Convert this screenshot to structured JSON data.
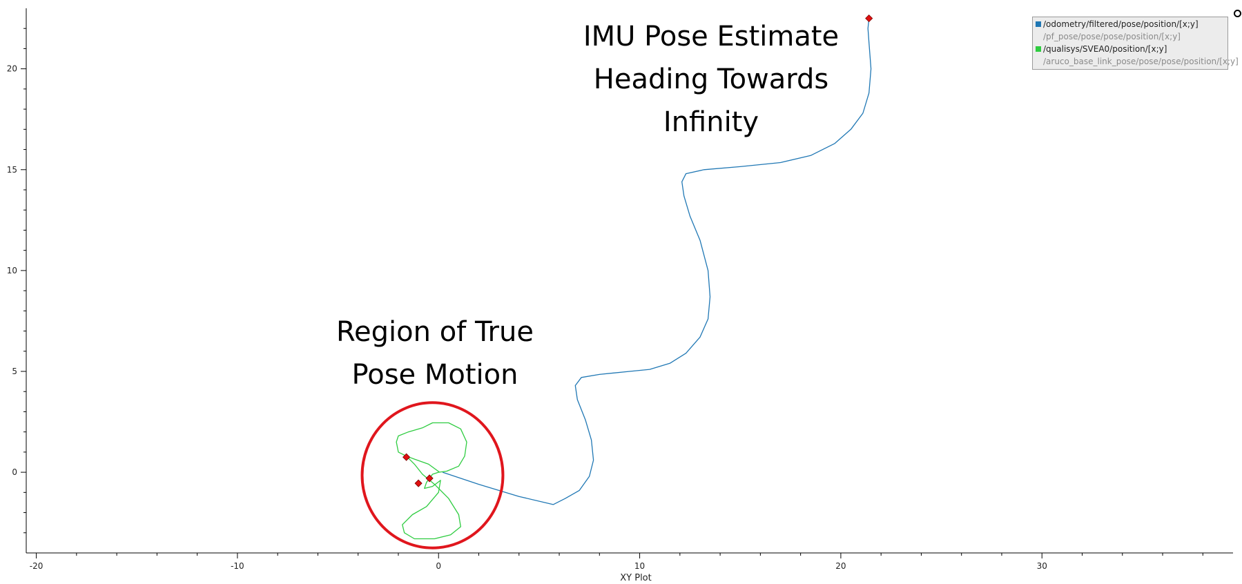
{
  "chart_data": {
    "type": "scatter",
    "title": "",
    "xlabel": "XY Plot",
    "ylabel": "",
    "xlim": [
      -20.5,
      39.5
    ],
    "ylim": [
      -4,
      23
    ],
    "x_ticks": [
      -20,
      -10,
      0,
      10,
      20,
      30
    ],
    "x_tick_labels": [
      "-20",
      "-10",
      "0",
      "10",
      "20",
      "30"
    ],
    "y_ticks": [
      0,
      5,
      10,
      15,
      20
    ],
    "y_tick_labels": [
      "0",
      "5",
      "10",
      "15",
      "20"
    ],
    "grid": false,
    "legend_position": "top-right",
    "series": [
      {
        "name": "/odometry/filtered/pose/position/[x;y]",
        "color": "#1f77b4",
        "visible": true,
        "points": [
          [
            0.2,
            0.0
          ],
          [
            2.0,
            -0.6
          ],
          [
            4.0,
            -1.2
          ],
          [
            5.7,
            -1.6
          ],
          [
            6.3,
            -1.3
          ],
          [
            7.0,
            -0.9
          ],
          [
            7.5,
            -0.2
          ],
          [
            7.7,
            0.6
          ],
          [
            7.6,
            1.6
          ],
          [
            7.3,
            2.6
          ],
          [
            6.9,
            3.6
          ],
          [
            6.8,
            4.3
          ],
          [
            7.1,
            4.7
          ],
          [
            8.0,
            4.85
          ],
          [
            9.5,
            5.0
          ],
          [
            10.5,
            5.1
          ],
          [
            11.5,
            5.4
          ],
          [
            12.3,
            5.9
          ],
          [
            13.0,
            6.7
          ],
          [
            13.4,
            7.6
          ],
          [
            13.5,
            8.7
          ],
          [
            13.4,
            10.0
          ],
          [
            13.0,
            11.5
          ],
          [
            12.5,
            12.7
          ],
          [
            12.2,
            13.7
          ],
          [
            12.1,
            14.4
          ],
          [
            12.3,
            14.8
          ],
          [
            13.2,
            15.0
          ],
          [
            15.0,
            15.15
          ],
          [
            17.0,
            15.35
          ],
          [
            18.5,
            15.7
          ],
          [
            19.7,
            16.3
          ],
          [
            20.5,
            17.0
          ],
          [
            21.1,
            17.8
          ],
          [
            21.4,
            18.8
          ],
          [
            21.5,
            20.0
          ],
          [
            21.4,
            21.3
          ],
          [
            21.35,
            22.0
          ],
          [
            21.4,
            22.5
          ]
        ]
      },
      {
        "name": "/pf_pose/pose/pose/position/[x;y]",
        "color": "#888888",
        "visible": false,
        "points": []
      },
      {
        "name": "/qualisys/SVEA0/position/[x;y]",
        "color": "#2ecc40",
        "visible": true,
        "points": [
          [
            0.05,
            0.0
          ],
          [
            -0.5,
            0.4
          ],
          [
            -1.2,
            0.65
          ],
          [
            -1.6,
            0.8
          ],
          [
            -2.0,
            1.0
          ],
          [
            -2.1,
            1.5
          ],
          [
            -2.0,
            1.8
          ],
          [
            -1.5,
            2.0
          ],
          [
            -0.8,
            2.2
          ],
          [
            -0.3,
            2.45
          ],
          [
            0.5,
            2.45
          ],
          [
            1.1,
            2.15
          ],
          [
            1.4,
            1.5
          ],
          [
            1.3,
            0.8
          ],
          [
            1.0,
            0.3
          ],
          [
            0.4,
            0.05
          ],
          [
            0.0,
            0.0
          ],
          [
            -0.3,
            -0.1
          ],
          [
            -0.6,
            -0.5
          ],
          [
            -0.7,
            -0.8
          ],
          [
            -0.3,
            -0.7
          ],
          [
            0.1,
            -0.4
          ],
          [
            0.0,
            -1.0
          ],
          [
            -0.6,
            -1.7
          ],
          [
            -1.3,
            -2.1
          ],
          [
            -1.8,
            -2.6
          ],
          [
            -1.7,
            -3.0
          ],
          [
            -1.2,
            -3.3
          ],
          [
            -0.2,
            -3.3
          ],
          [
            0.6,
            -3.1
          ],
          [
            1.1,
            -2.7
          ],
          [
            1.0,
            -2.1
          ],
          [
            0.5,
            -1.3
          ],
          [
            -0.2,
            -0.6
          ],
          [
            -0.8,
            -0.1
          ],
          [
            -1.2,
            0.4
          ],
          [
            -1.6,
            0.8
          ]
        ]
      },
      {
        "name": "/aruco_base_link_pose/pose/pose/position/[x;y]",
        "color": "#888888",
        "visible": false,
        "points": []
      }
    ],
    "markers": [
      [
        21.4,
        22.5
      ],
      [
        -1.6,
        0.75
      ],
      [
        -0.45,
        -0.3
      ],
      [
        -1.0,
        -0.55
      ]
    ],
    "marker_color": "#e01010",
    "annotations": [
      {
        "lines": [
          "IMU Pose Estimate",
          "Heading Towards",
          "Infinity"
        ]
      },
      {
        "lines": [
          "Region of True",
          "Pose Motion"
        ]
      }
    ],
    "highlight_circle": {
      "cx": -0.3,
      "cy": -0.15,
      "rx": 3.5,
      "ry": 3.6,
      "color": "#e0161d"
    }
  },
  "legend": {
    "items": [
      {
        "label": "/odometry/filtered/pose/position/[x;y]",
        "color": "#1f77b4",
        "active": true
      },
      {
        "label": "/pf_pose/pose/pose/position/[x;y]",
        "color": "#ececec",
        "active": false
      },
      {
        "label": "/qualisys/SVEA0/position/[x;y]",
        "color": "#2ecc40",
        "active": true
      },
      {
        "label": "/aruco_base_link_pose/pose/pose/position/[x;y]",
        "color": "#ececec",
        "active": false
      }
    ]
  }
}
